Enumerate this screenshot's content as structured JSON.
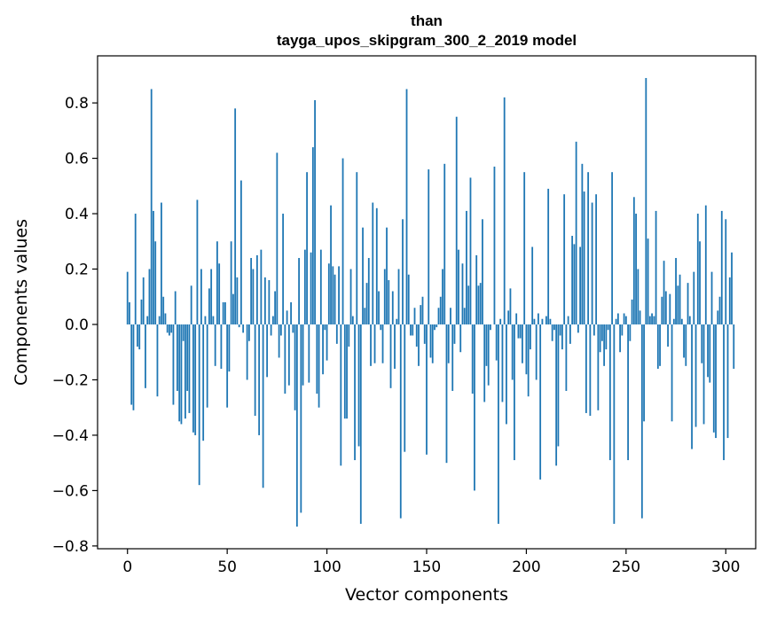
{
  "chart_data": {
    "type": "bar",
    "title_lines": [
      "than",
      "tayga_upos_skipgram_300_2_2019 model"
    ],
    "xlabel": "Vector components",
    "ylabel": "Components values",
    "xlim": [
      -15,
      315
    ],
    "ylim": [
      -0.81,
      0.97
    ],
    "xticks": [
      0,
      50,
      100,
      150,
      200,
      250,
      300
    ],
    "xtick_labels": [
      "0",
      "50",
      "100",
      "150",
      "200",
      "250",
      "300"
    ],
    "yticks": [
      -0.8,
      -0.6,
      -0.4,
      -0.2,
      0.0,
      0.2,
      0.4,
      0.6,
      0.8
    ],
    "ytick_labels": [
      "−0.8",
      "−0.6",
      "−0.4",
      "−0.2",
      "0.0",
      "0.2",
      "0.4",
      "0.6",
      "0.8"
    ],
    "bar_color": "#1f77b4",
    "grid": false,
    "values": [
      0.19,
      0.08,
      -0.29,
      -0.31,
      0.4,
      -0.08,
      -0.09,
      0.09,
      0.17,
      -0.23,
      0.03,
      0.2,
      0.85,
      0.41,
      0.3,
      -0.26,
      0.03,
      0.44,
      0.1,
      0.04,
      -0.03,
      -0.04,
      -0.03,
      -0.29,
      0.12,
      -0.24,
      -0.35,
      -0.36,
      -0.06,
      -0.34,
      -0.24,
      -0.32,
      0.14,
      -0.39,
      -0.4,
      0.45,
      -0.58,
      0.2,
      -0.42,
      0.03,
      -0.3,
      0.13,
      0.2,
      0.03,
      -0.15,
      0.3,
      0.22,
      -0.16,
      0.08,
      0.08,
      -0.3,
      -0.17,
      0.3,
      0.11,
      0.78,
      0.17,
      -0.01,
      0.52,
      -0.03,
      0.0,
      -0.2,
      -0.06,
      0.24,
      0.2,
      -0.33,
      0.25,
      -0.4,
      0.27,
      -0.59,
      0.17,
      -0.19,
      0.16,
      -0.04,
      0.03,
      0.12,
      0.62,
      -0.12,
      -0.04,
      0.4,
      -0.25,
      0.05,
      -0.22,
      0.08,
      -0.03,
      -0.31,
      -0.73,
      0.24,
      -0.68,
      -0.22,
      0.27,
      0.55,
      -0.21,
      0.26,
      0.64,
      0.81,
      -0.25,
      -0.3,
      0.27,
      -0.18,
      -0.02,
      -0.13,
      0.22,
      0.43,
      0.21,
      0.18,
      -0.07,
      0.21,
      -0.51,
      0.6,
      -0.34,
      -0.34,
      -0.08,
      0.2,
      0.03,
      -0.49,
      0.55,
      -0.44,
      -0.72,
      0.35,
      0.06,
      0.15,
      0.24,
      -0.15,
      0.44,
      -0.14,
      0.42,
      0.12,
      -0.02,
      -0.14,
      0.2,
      0.35,
      0.16,
      -0.23,
      0.12,
      -0.16,
      0.02,
      0.2,
      -0.7,
      0.38,
      -0.46,
      0.85,
      0.18,
      -0.04,
      -0.04,
      0.06,
      -0.08,
      -0.15,
      0.07,
      0.1,
      -0.07,
      -0.47,
      0.56,
      -0.12,
      -0.14,
      -0.02,
      -0.01,
      0.06,
      0.1,
      0.2,
      0.58,
      -0.5,
      -0.14,
      0.06,
      -0.24,
      -0.07,
      0.75,
      0.27,
      -0.1,
      0.22,
      0.06,
      0.41,
      0.14,
      0.53,
      -0.25,
      -0.6,
      0.25,
      0.14,
      0.15,
      0.38,
      -0.28,
      -0.15,
      -0.22,
      -0.02,
      0.0,
      0.57,
      -0.13,
      -0.72,
      0.02,
      -0.28,
      0.82,
      -0.36,
      0.05,
      0.13,
      -0.2,
      -0.49,
      0.04,
      -0.05,
      -0.05,
      -0.14,
      0.55,
      -0.18,
      -0.26,
      -0.09,
      0.28,
      0.02,
      -0.2,
      0.04,
      -0.56,
      0.02,
      0.0,
      0.03,
      0.49,
      0.02,
      -0.06,
      -0.02,
      -0.51,
      -0.44,
      -0.04,
      -0.09,
      0.47,
      -0.24,
      0.03,
      -0.07,
      0.32,
      0.29,
      0.66,
      -0.03,
      0.28,
      0.58,
      0.48,
      -0.32,
      0.55,
      -0.33,
      0.44,
      -0.04,
      0.47,
      -0.31,
      -0.1,
      -0.06,
      -0.15,
      -0.09,
      -0.02,
      -0.49,
      0.55,
      -0.72,
      0.02,
      0.04,
      -0.1,
      -0.04,
      0.04,
      0.03,
      -0.49,
      -0.06,
      0.09,
      0.46,
      0.4,
      0.2,
      0.05,
      -0.7,
      -0.35,
      0.89,
      0.31,
      0.03,
      0.04,
      0.03,
      0.41,
      -0.16,
      -0.15,
      0.1,
      0.23,
      0.12,
      -0.08,
      0.11,
      -0.35,
      0.02,
      0.24,
      0.14,
      0.18,
      0.02,
      -0.12,
      -0.15,
      0.15,
      0.03,
      -0.45,
      0.19,
      -0.37,
      0.4,
      0.3,
      -0.14,
      -0.36,
      0.43,
      -0.19,
      -0.21,
      0.19,
      -0.39,
      -0.41,
      0.05,
      0.1,
      0.41,
      -0.49,
      0.38,
      -0.41,
      0.17,
      0.26,
      -0.16
    ]
  }
}
